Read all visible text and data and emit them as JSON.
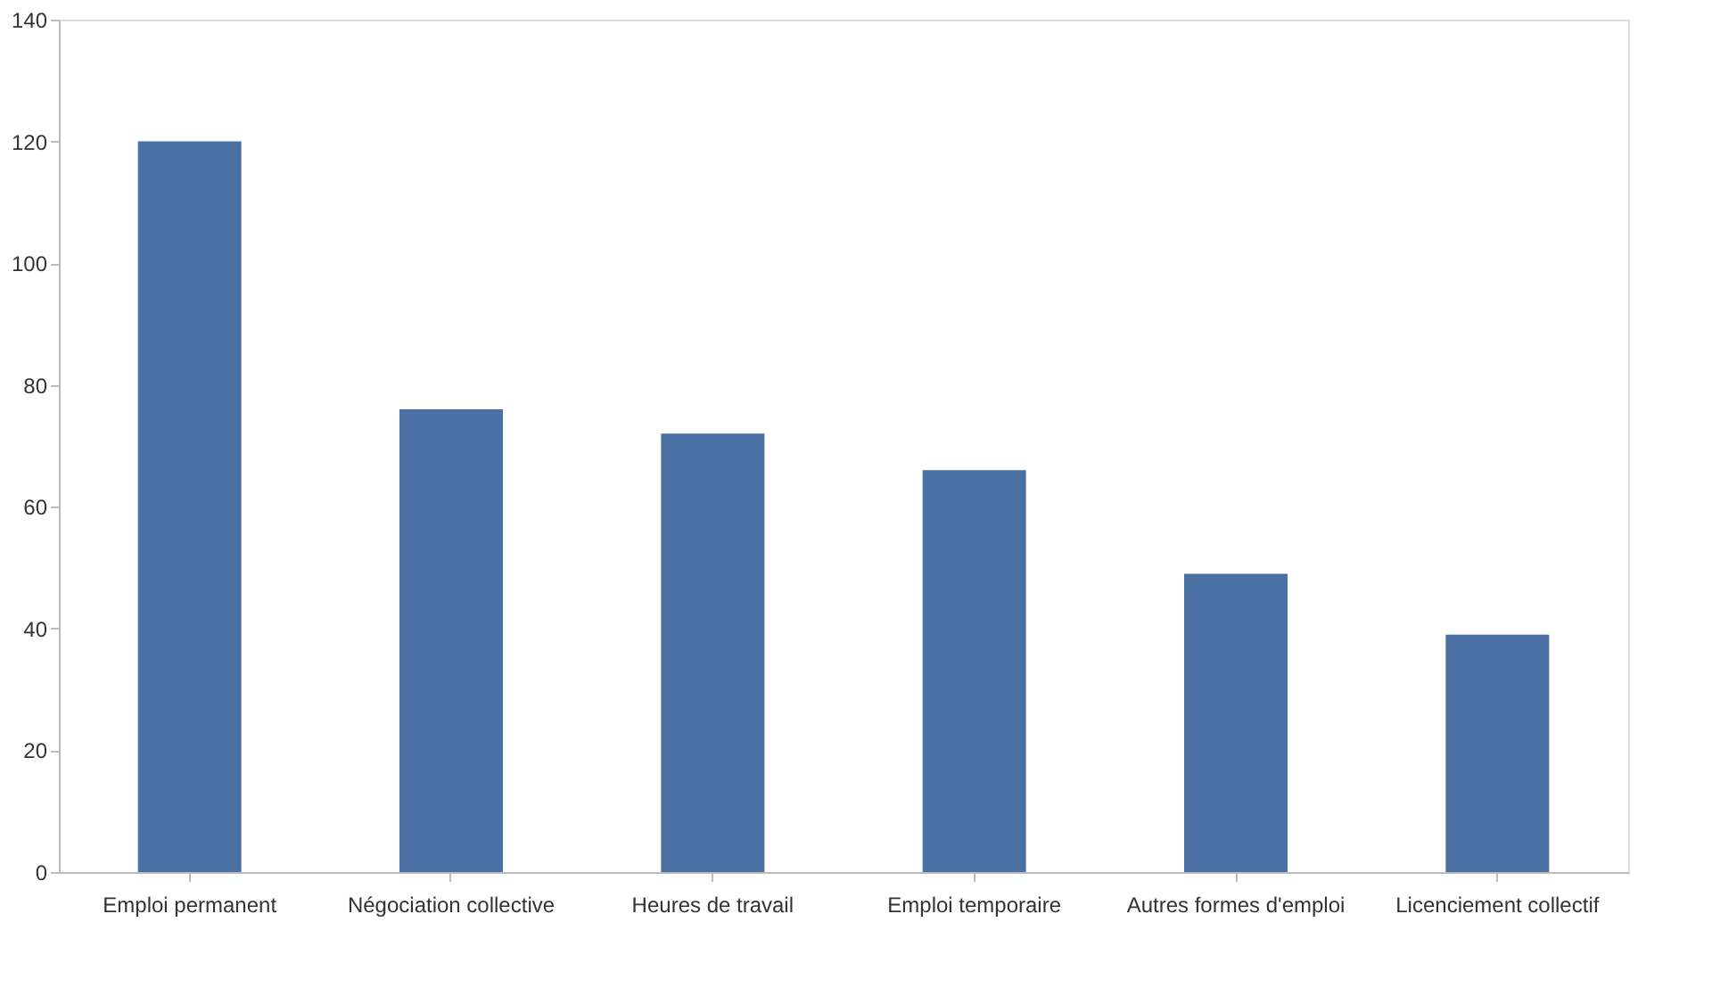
{
  "chart_data": {
    "type": "bar",
    "categories": [
      "Emploi permanent",
      "Négociation collective",
      "Heures de travail",
      "Emploi temporaire",
      "Autres formes d'emploi",
      "Licenciement collectif"
    ],
    "values": [
      120,
      76,
      72,
      66,
      49,
      39
    ],
    "color": "#4a70a4",
    "ylim": [
      0,
      140
    ],
    "yticks": [
      0,
      20,
      40,
      60,
      80,
      100,
      120,
      140
    ],
    "grid": false
  }
}
